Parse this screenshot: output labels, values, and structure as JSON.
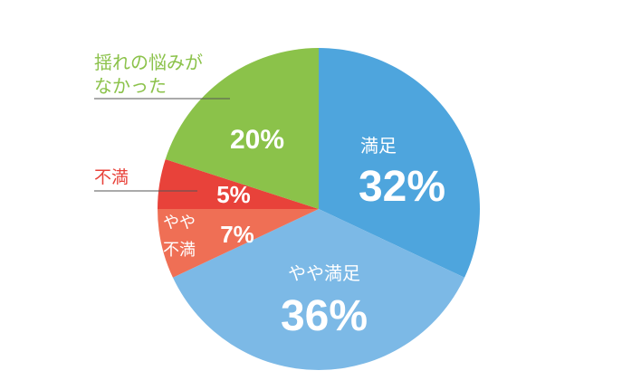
{
  "chart_data": {
    "type": "pie",
    "slices": [
      {
        "label": "満足",
        "value": 32,
        "value_label": "32%",
        "color": "#4ea5dd"
      },
      {
        "label": "やや満足",
        "value": 36,
        "value_label": "36%",
        "color": "#7cb9e6"
      },
      {
        "label": "やや不満",
        "label_lines": [
          "やや",
          "不満"
        ],
        "value": 7,
        "value_label": "7%",
        "color": "#ef6f55"
      },
      {
        "label": "不満",
        "value": 5,
        "value_label": "5%",
        "color": "#e8423a"
      },
      {
        "label": "揺れの悩みがなかった",
        "label_lines": [
          "揺れの悩みが",
          "なかった"
        ],
        "value": 20,
        "value_label": "20%",
        "color": "#8bc24a"
      }
    ]
  }
}
